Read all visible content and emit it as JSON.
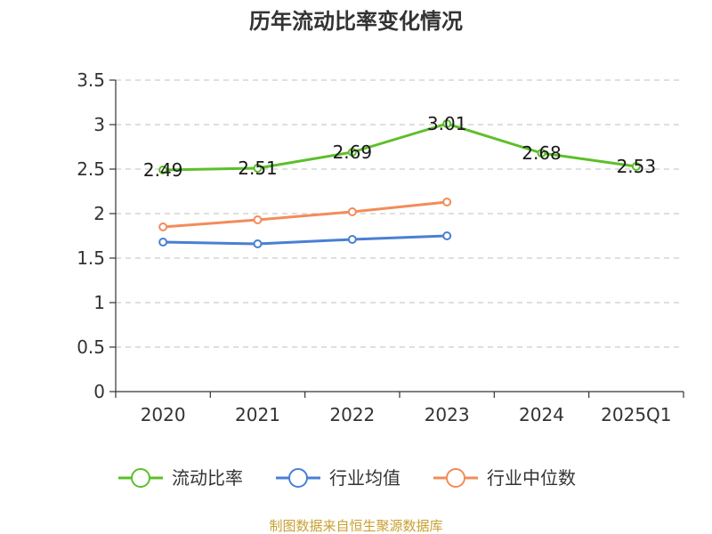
{
  "chart_data": {
    "type": "line",
    "title": "历年流动比率变化情况",
    "categories": [
      "2020",
      "2021",
      "2022",
      "2023",
      "2024",
      "2025Q1"
    ],
    "ylim": [
      0,
      3.5
    ],
    "y_ticks": [
      "0",
      "0.5",
      "1",
      "1.5",
      "2",
      "2.5",
      "3",
      "3.5"
    ],
    "grid": true,
    "legend_position": "bottom",
    "series": [
      {
        "name": "流动比率",
        "color": "#5cbf2a",
        "values": [
          2.49,
          2.51,
          2.69,
          3.01,
          2.68,
          2.53
        ],
        "labels": [
          "2.49",
          "2.51",
          "2.69",
          "3.01",
          "2.68",
          "2.53"
        ],
        "show_labels": true
      },
      {
        "name": "行业均值",
        "color": "#4a7fd4",
        "values": [
          1.68,
          1.66,
          1.71,
          1.75,
          null,
          null
        ],
        "show_labels": false
      },
      {
        "name": "行业中位数",
        "color": "#f28c5a",
        "values": [
          1.85,
          1.93,
          2.02,
          2.13,
          null,
          null
        ],
        "show_labels": false
      }
    ]
  },
  "source_text": "制图数据来自恒生聚源数据库"
}
